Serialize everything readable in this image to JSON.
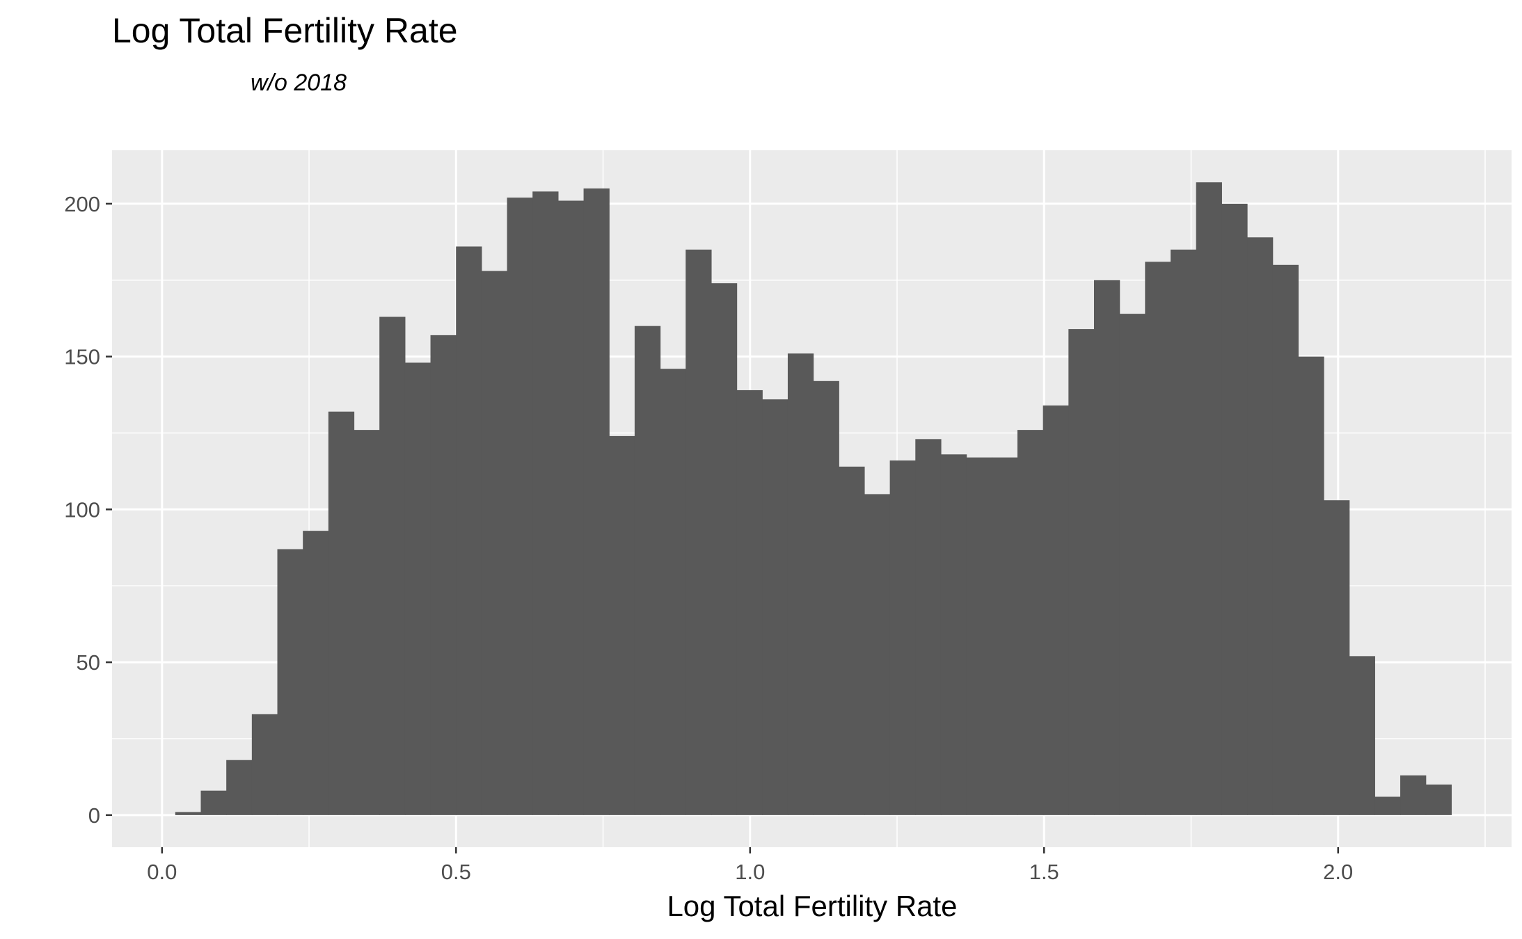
{
  "chart_data": {
    "type": "bar",
    "title": "Log Total Fertility Rate",
    "subtitle": "w/o 2018",
    "xlabel": "Log Total Fertility Rate",
    "ylabel": "",
    "xlim": [
      -0.085,
      2.295
    ],
    "ylim": [
      -10.5,
      217.5
    ],
    "x_ticks": [
      {
        "value": 0.0,
        "label": "0.0"
      },
      {
        "value": 0.5,
        "label": "0.5"
      },
      {
        "value": 1.0,
        "label": "1.0"
      },
      {
        "value": 1.5,
        "label": "1.5"
      },
      {
        "value": 2.0,
        "label": "2.0"
      }
    ],
    "y_ticks": [
      {
        "value": 0,
        "label": "0"
      },
      {
        "value": 50,
        "label": "50"
      },
      {
        "value": 100,
        "label": "100"
      },
      {
        "value": 150,
        "label": "150"
      },
      {
        "value": 200,
        "label": "200"
      }
    ],
    "bin_width": 0.0434,
    "bin_start": 0.0225,
    "values": [
      1,
      8,
      18,
      33,
      87,
      93,
      132,
      126,
      163,
      148,
      157,
      186,
      178,
      202,
      204,
      201,
      205,
      124,
      160,
      146,
      185,
      174,
      139,
      136,
      151,
      142,
      114,
      105,
      116,
      123,
      118,
      117,
      117,
      126,
      134,
      159,
      175,
      164,
      181,
      185,
      207,
      200,
      189,
      180,
      150,
      103,
      52,
      6,
      13,
      10
    ],
    "bar_color": "#595959",
    "panel_background": "#ebebeb",
    "grid": true
  }
}
